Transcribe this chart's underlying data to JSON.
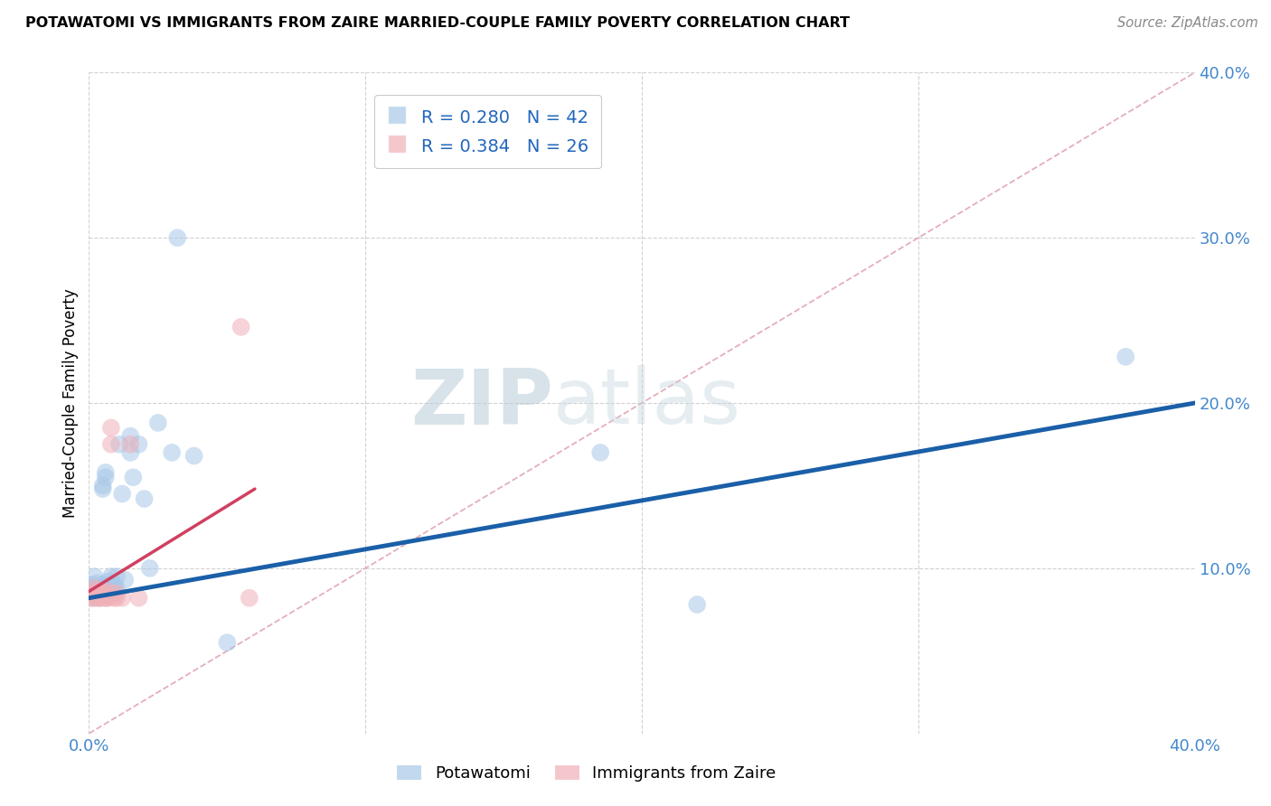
{
  "title": "POTAWATOMI VS IMMIGRANTS FROM ZAIRE MARRIED-COUPLE FAMILY POVERTY CORRELATION CHART",
  "source": "Source: ZipAtlas.com",
  "ylabel": "Married-Couple Family Poverty",
  "xlim": [
    0,
    0.4
  ],
  "ylim": [
    0,
    0.4
  ],
  "blue_color": "#a8c8e8",
  "blue_edge_color": "#a8c8e8",
  "pink_color": "#f0b0b8",
  "pink_edge_color": "#f0b0b8",
  "blue_line_color": "#1a5fa8",
  "pink_line_color": "#d04060",
  "diag_line_color": "#e0a0b0",
  "tick_color": "#4488cc",
  "legend_text_color": "#2266bb",
  "watermark_color": "#c8d8e8",
  "legend_R1": "R = 0.280",
  "legend_N1": "N = 42",
  "legend_R2": "R = 0.384",
  "legend_N2": "N = 26",
  "potawatomi_x": [
    0.001,
    0.001,
    0.002,
    0.002,
    0.003,
    0.003,
    0.003,
    0.004,
    0.004,
    0.005,
    0.005,
    0.005,
    0.005,
    0.006,
    0.006,
    0.006,
    0.007,
    0.007,
    0.007,
    0.008,
    0.008,
    0.009,
    0.009,
    0.01,
    0.01,
    0.011,
    0.012,
    0.013,
    0.015,
    0.015,
    0.016,
    0.018,
    0.02,
    0.022,
    0.025,
    0.03,
    0.032,
    0.038,
    0.05,
    0.185,
    0.22,
    0.375
  ],
  "potawatomi_y": [
    0.09,
    0.082,
    0.095,
    0.085,
    0.088,
    0.083,
    0.091,
    0.085,
    0.082,
    0.15,
    0.148,
    0.09,
    0.083,
    0.158,
    0.155,
    0.09,
    0.088,
    0.092,
    0.085,
    0.095,
    0.09,
    0.09,
    0.088,
    0.095,
    0.088,
    0.175,
    0.145,
    0.093,
    0.18,
    0.17,
    0.155,
    0.175,
    0.142,
    0.1,
    0.188,
    0.17,
    0.3,
    0.168,
    0.055,
    0.17,
    0.078,
    0.228
  ],
  "zaire_x": [
    0.001,
    0.001,
    0.002,
    0.002,
    0.003,
    0.003,
    0.003,
    0.004,
    0.004,
    0.005,
    0.005,
    0.006,
    0.006,
    0.006,
    0.007,
    0.007,
    0.008,
    0.008,
    0.009,
    0.01,
    0.01,
    0.012,
    0.015,
    0.018,
    0.055,
    0.058
  ],
  "zaire_y": [
    0.082,
    0.085,
    0.082,
    0.088,
    0.083,
    0.086,
    0.082,
    0.085,
    0.082,
    0.085,
    0.083,
    0.082,
    0.085,
    0.082,
    0.082,
    0.086,
    0.175,
    0.185,
    0.082,
    0.082,
    0.085,
    0.082,
    0.175,
    0.082,
    0.246,
    0.082
  ],
  "blue_line_x": [
    0.0,
    0.4
  ],
  "blue_line_y": [
    0.082,
    0.2
  ],
  "pink_line_x": [
    0.0,
    0.06
  ],
  "pink_line_y": [
    0.086,
    0.148
  ],
  "diag_line_x": [
    0.0,
    0.4
  ],
  "diag_line_y": [
    0.0,
    0.4
  ]
}
